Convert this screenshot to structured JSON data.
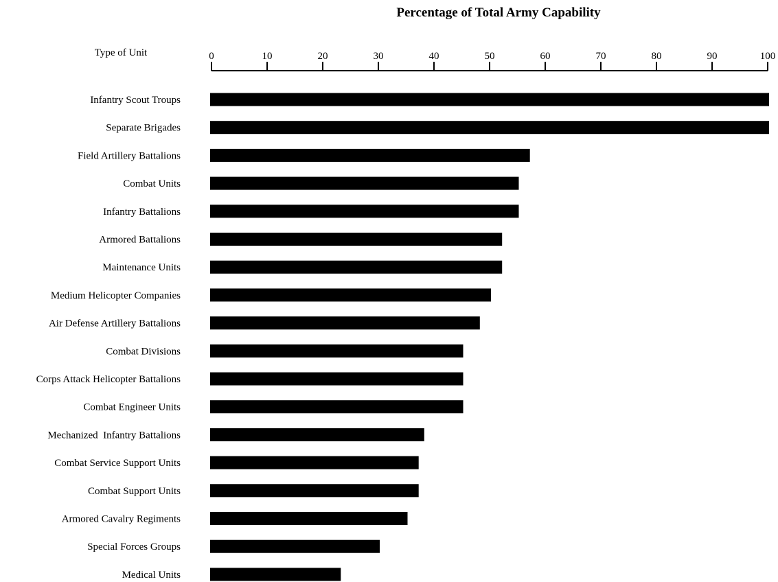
{
  "chart_data": {
    "type": "bar",
    "orientation": "horizontal",
    "title": "Percentage of Total Army Capability",
    "category_axis_label": "Type of Unit",
    "xlabel": "",
    "ylabel": "",
    "xlim": [
      0,
      100
    ],
    "ticks": [
      "0",
      "10",
      "20",
      "30",
      "40",
      "50",
      "60",
      "70",
      "80",
      "90",
      "100"
    ],
    "grid": false,
    "legend": "none",
    "bar_color": "#000000",
    "categories": [
      "Infantry Scout Troups",
      "Separate Brigades",
      "Field Artillery Battalions",
      "Combat Units",
      "Infantry Battalions",
      "Armored Battalions",
      "Maintenance Units",
      "Medium Helicopter Companies",
      "Air Defense Artillery Battalions",
      "Combat Divisions",
      "Corps Attack Helicopter Battalions",
      "Combat Engineer Units",
      "Mechanized  Infantry Battalions",
      "Combat Service Support Units",
      "Combat Support Units",
      "Armored Cavalry Regiments",
      "Special Forces Groups",
      "Medical Units"
    ],
    "values": [
      100,
      100,
      57,
      55,
      55,
      52,
      52,
      50,
      48,
      45,
      45,
      45,
      38,
      37,
      37,
      35,
      30,
      23
    ]
  }
}
